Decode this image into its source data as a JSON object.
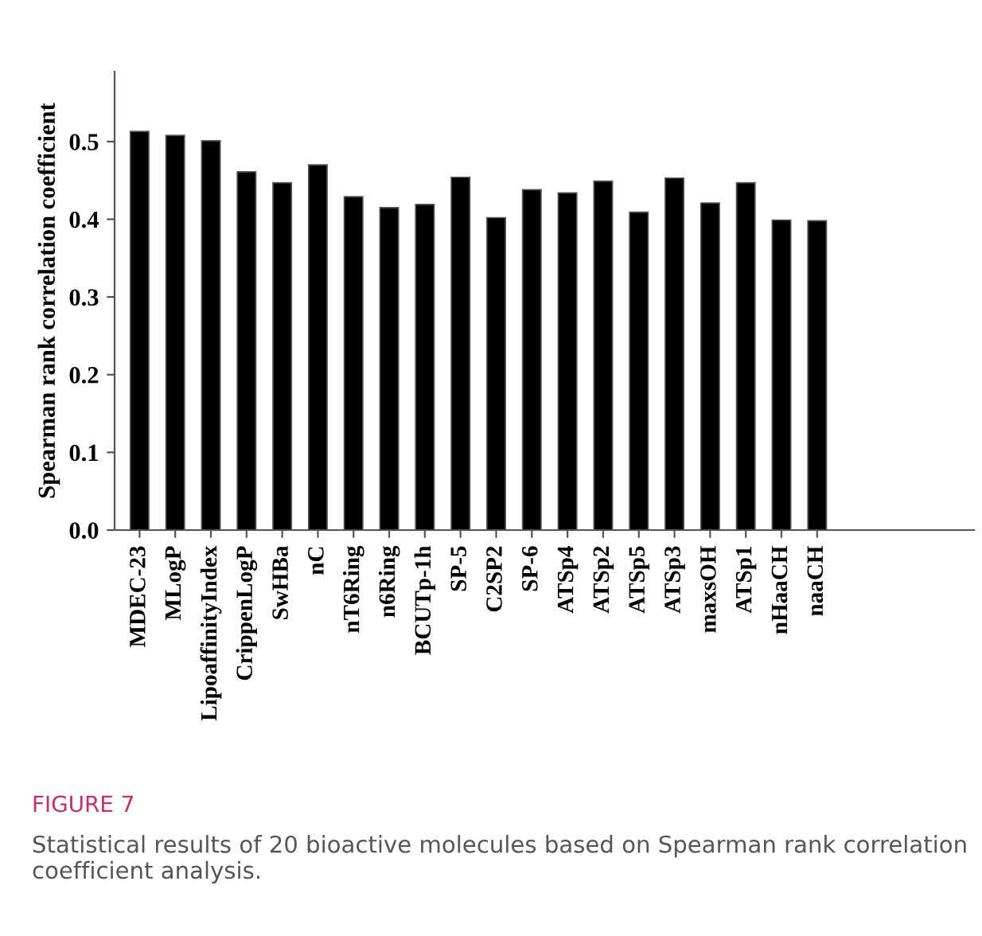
{
  "chart_data": {
    "type": "bar",
    "ylabel": "Spearman rank correlation coefficient",
    "categories": [
      "MDEC-23",
      "MLogP",
      "LipoaffinityIndex",
      "CrippenLogP",
      "SwHBa",
      "nC",
      "nT6Ring",
      "n6Ring",
      "BCUTp-1h",
      "SP-5",
      "C2SP2",
      "SP-6",
      "ATSp4",
      "ATSp2",
      "ATSp5",
      "ATSp3",
      "maxsOH",
      "ATSp1",
      "nHaaCH",
      "naaCH"
    ],
    "values": [
      0.513,
      0.508,
      0.501,
      0.461,
      0.447,
      0.47,
      0.429,
      0.415,
      0.419,
      0.454,
      0.402,
      0.438,
      0.434,
      0.449,
      0.409,
      0.453,
      0.421,
      0.447,
      0.399,
      0.398
    ],
    "color": "#000000",
    "ylim": [
      0,
      0.59
    ],
    "yticks": [
      {
        "value": 0,
        "label": "0.0"
      },
      0.1,
      0.2,
      0.3,
      0.4,
      0.5
    ],
    "grid": false,
    "annotations": [
      "FIGURE 7",
      "Statistical results of 20 bioactive molecules based on Spearman rank correlation coefficient analysis."
    ]
  }
}
